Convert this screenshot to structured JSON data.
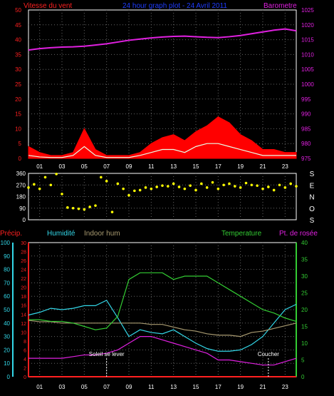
{
  "colors": {
    "wind_label": "#ff2020",
    "title": "#1e3cff",
    "pressure": "#e020e0",
    "gust": "#ff0000",
    "wind": "#ffff60",
    "wind_mean": "#e8ffe8",
    "direction": "#ffff00",
    "precip": "#ff2020",
    "humidity": "#33d7e8",
    "indoor_hum": "#a89a70",
    "temperature": "#33cc33",
    "dewpoint": "#e020e0",
    "sun": "#ffffff",
    "grid": "#666666",
    "frame": "#ffffff"
  },
  "hour_labels": [
    "01",
    "03",
    "05",
    "07",
    "09",
    "11",
    "13",
    "15",
    "17",
    "19",
    "21",
    "23"
  ],
  "chart_data": [
    {
      "type": "line",
      "title": "24 hour graph plot - 24 Avril 2011",
      "left_axis_label": "Vitesse du vent",
      "right_axis_label": "Barometre",
      "left_ticks": [
        "50",
        "45",
        "40",
        "35",
        "30",
        "25",
        "20",
        "15",
        "10",
        "5",
        "0"
      ],
      "right_ticks": [
        "1025",
        "1020",
        "1015",
        "1010",
        "1005",
        "1000",
        "995",
        "990",
        "985",
        "980",
        "975"
      ],
      "ylim_left": [
        0,
        50
      ],
      "ylim_right": [
        975,
        1025
      ],
      "x": [
        0,
        1,
        2,
        3,
        4,
        5,
        6,
        7,
        8,
        9,
        10,
        11,
        12,
        13,
        14,
        15,
        16,
        17,
        18,
        19,
        20,
        21,
        22,
        23,
        24
      ],
      "series": [
        {
          "name": "Barometre",
          "axis": "right",
          "values": [
            1011.5,
            1012,
            1012.3,
            1012.5,
            1012.6,
            1012.8,
            1013.2,
            1013.6,
            1014.2,
            1014.8,
            1015.2,
            1015.6,
            1015.9,
            1016.1,
            1016.2,
            1016.0,
            1015.8,
            1015.7,
            1016.0,
            1016.4,
            1017.0,
            1017.6,
            1018.2,
            1018.6,
            1018.0
          ]
        },
        {
          "name": "gust",
          "axis": "left",
          "values": [
            4,
            2,
            1,
            1,
            2,
            10,
            3,
            1,
            1,
            1,
            2,
            5,
            7,
            8,
            6,
            9,
            11,
            14,
            12,
            8,
            6,
            3,
            3,
            2,
            2
          ]
        },
        {
          "name": "wind",
          "axis": "left",
          "values": [
            1,
            0.5,
            0.3,
            0.3,
            1,
            4,
            1,
            0.3,
            0.3,
            0.3,
            1,
            2,
            3,
            3,
            2,
            4,
            5,
            5,
            4,
            3,
            2,
            1,
            1,
            1,
            1
          ]
        }
      ]
    },
    {
      "type": "scatter",
      "series_name": "Wind direction",
      "left_ticks": [
        "360",
        "270",
        "180",
        "90",
        "0"
      ],
      "right_ticks": [
        "S",
        "E",
        "N",
        "O",
        "S"
      ],
      "ylim": [
        0,
        360
      ],
      "x": [
        0,
        0.5,
        1,
        1.5,
        2,
        2.5,
        3,
        3.5,
        4,
        4.5,
        5,
        5.5,
        6,
        6.5,
        7,
        7.5,
        8,
        8.5,
        9,
        9.5,
        10,
        10.5,
        11,
        11.5,
        12,
        12.5,
        13,
        13.5,
        14,
        14.5,
        15,
        15.5,
        16,
        16.5,
        17,
        17.5,
        18,
        18.5,
        19,
        19.5,
        20,
        20.5,
        21,
        21.5,
        22,
        22.5,
        23,
        23.5,
        24
      ],
      "values": [
        250,
        275,
        240,
        330,
        270,
        355,
        200,
        95,
        90,
        85,
        80,
        100,
        110,
        330,
        300,
        60,
        280,
        240,
        190,
        225,
        230,
        250,
        240,
        255,
        265,
        260,
        280,
        255,
        240,
        265,
        230,
        280,
        250,
        290,
        240,
        270,
        280,
        260,
        250,
        285,
        270,
        265,
        240,
        255,
        230,
        270,
        250,
        280,
        260
      ]
    },
    {
      "type": "line",
      "labels": {
        "precip": "Précip.",
        "humidity": "Humidité",
        "indoor_hum": "Indoor hum",
        "temperature": "Temperature",
        "dewpoint": "Pt. de rosée",
        "sunrise": "Soleil se lever",
        "sunset": "Coucher"
      },
      "hum_ticks": [
        "100",
        "90",
        "80",
        "70",
        "60",
        "50",
        "40",
        "30",
        "20",
        "10",
        "0"
      ],
      "precip_ticks": [
        "30",
        "28",
        "26",
        "24",
        "22",
        "20",
        "18",
        "16",
        "14",
        "12",
        "10",
        "8",
        "6",
        "4",
        "2",
        "0"
      ],
      "temp_ticks": [
        "40",
        "35",
        "30",
        "25",
        "20",
        "15",
        "10",
        "5",
        "0"
      ],
      "ylim_temp": [
        0,
        40
      ],
      "ylim_hum": [
        0,
        100
      ],
      "ylim_precip": [
        0,
        30
      ],
      "sunrise_hour": 7,
      "sunset_hour": 21.5,
      "x": [
        0,
        1,
        2,
        3,
        4,
        5,
        6,
        7,
        8,
        9,
        10,
        11,
        12,
        13,
        14,
        15,
        16,
        17,
        18,
        19,
        20,
        21,
        22,
        23,
        24
      ],
      "series": [
        {
          "name": "Humidité",
          "axis": "hum",
          "values": [
            46,
            48,
            51,
            50,
            51,
            53,
            53,
            57,
            44,
            30,
            35,
            33,
            32,
            35,
            30,
            25,
            21,
            19,
            19,
            20,
            24,
            30,
            40,
            50,
            54
          ]
        },
        {
          "name": "Indoor hum",
          "axis": "hum",
          "values": [
            42,
            41,
            41,
            40,
            40,
            40,
            40,
            40,
            40,
            40,
            40,
            39,
            39,
            37,
            35,
            34,
            32,
            31,
            31,
            30,
            33,
            34,
            36,
            38,
            40
          ]
        },
        {
          "name": "Temperature",
          "axis": "temp",
          "values": [
            17,
            17,
            16.5,
            16.5,
            16,
            15,
            14,
            14.5,
            18,
            29,
            31,
            31,
            31,
            29,
            30,
            30,
            30,
            28,
            26,
            24,
            22,
            20,
            19,
            17.5,
            16.5
          ]
        },
        {
          "name": "Pt. de rosée",
          "axis": "temp",
          "values": [
            5.5,
            5.5,
            5.5,
            5.5,
            6,
            6.5,
            6.5,
            7,
            8,
            10,
            12,
            12,
            11,
            10,
            9,
            8,
            7,
            5,
            5,
            4.5,
            4,
            3.5,
            3.5,
            4.5,
            5.5
          ]
        },
        {
          "name": "Précip.",
          "axis": "precip",
          "values": [
            0,
            0,
            0,
            0,
            0,
            0,
            0,
            0,
            0,
            0,
            0,
            0,
            0,
            0,
            0,
            0,
            0,
            0,
            0,
            0,
            0,
            0,
            0,
            0,
            0
          ]
        }
      ]
    }
  ]
}
